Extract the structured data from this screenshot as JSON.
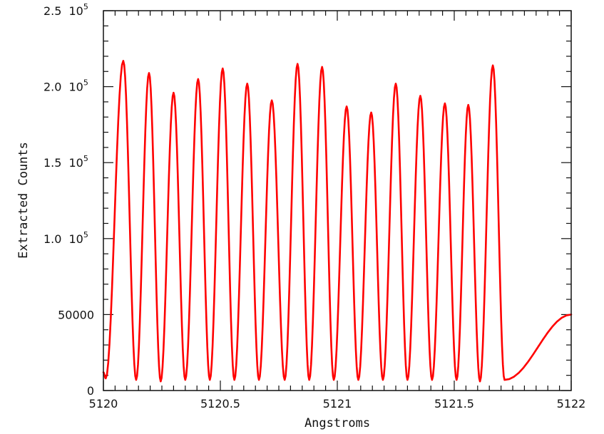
{
  "chart_data": {
    "type": "line",
    "xlabel": "Angstroms",
    "ylabel": "Extracted Counts",
    "xlim": [
      5120,
      5122
    ],
    "ylim": [
      0,
      250000
    ],
    "grid": false,
    "line_color": "#ff0000",
    "x_ticks": [
      {
        "value": 5120,
        "label": "5120"
      },
      {
        "value": 5120.5,
        "label": "5120.5"
      },
      {
        "value": 5121,
        "label": "5121"
      },
      {
        "value": 5121.5,
        "label": "5121.5"
      },
      {
        "value": 5122,
        "label": "5122"
      }
    ],
    "y_ticks": [
      {
        "value": 0,
        "label": "0"
      },
      {
        "value": 50000,
        "label": "50000"
      },
      {
        "value": 100000,
        "label": "1.0",
        "exp": "5"
      },
      {
        "value": 150000,
        "label": "1.5",
        "exp": "5"
      },
      {
        "value": 200000,
        "label": "2.0",
        "exp": "5"
      },
      {
        "value": 250000,
        "label": "2.5",
        "exp": "5"
      }
    ],
    "y_tick_base": "10",
    "peaks": [
      {
        "x": 5120.085,
        "y": 217000
      },
      {
        "x": 5120.195,
        "y": 209000
      },
      {
        "x": 5120.3,
        "y": 196000
      },
      {
        "x": 5120.405,
        "y": 205000
      },
      {
        "x": 5120.51,
        "y": 212000
      },
      {
        "x": 5120.615,
        "y": 202000
      },
      {
        "x": 5120.72,
        "y": 191000
      },
      {
        "x": 5120.83,
        "y": 215000
      },
      {
        "x": 5120.935,
        "y": 213000
      },
      {
        "x": 5121.04,
        "y": 187000
      },
      {
        "x": 5121.145,
        "y": 183000
      },
      {
        "x": 5121.25,
        "y": 202000
      },
      {
        "x": 5121.355,
        "y": 194000
      },
      {
        "x": 5121.46,
        "y": 189000
      },
      {
        "x": 5121.56,
        "y": 188000
      },
      {
        "x": 5121.665,
        "y": 214000
      }
    ],
    "troughs": [
      {
        "x": 5120.01,
        "y": 8000
      },
      {
        "x": 5120.14,
        "y": 7000
      },
      {
        "x": 5120.245,
        "y": 6000
      },
      {
        "x": 5120.35,
        "y": 7000
      },
      {
        "x": 5120.455,
        "y": 7000
      },
      {
        "x": 5120.56,
        "y": 7000
      },
      {
        "x": 5120.665,
        "y": 7000
      },
      {
        "x": 5120.775,
        "y": 7000
      },
      {
        "x": 5120.88,
        "y": 7000
      },
      {
        "x": 5120.985,
        "y": 7000
      },
      {
        "x": 5121.09,
        "y": 7000
      },
      {
        "x": 5121.195,
        "y": 7000
      },
      {
        "x": 5121.3,
        "y": 7000
      },
      {
        "x": 5121.405,
        "y": 7000
      },
      {
        "x": 5121.51,
        "y": 7000
      },
      {
        "x": 5121.61,
        "y": 6000
      },
      {
        "x": 5121.715,
        "y": 7000
      }
    ],
    "start": {
      "x": 5120.0,
      "y": 12000
    },
    "end": {
      "x": 5122.0,
      "y": 50000
    }
  }
}
